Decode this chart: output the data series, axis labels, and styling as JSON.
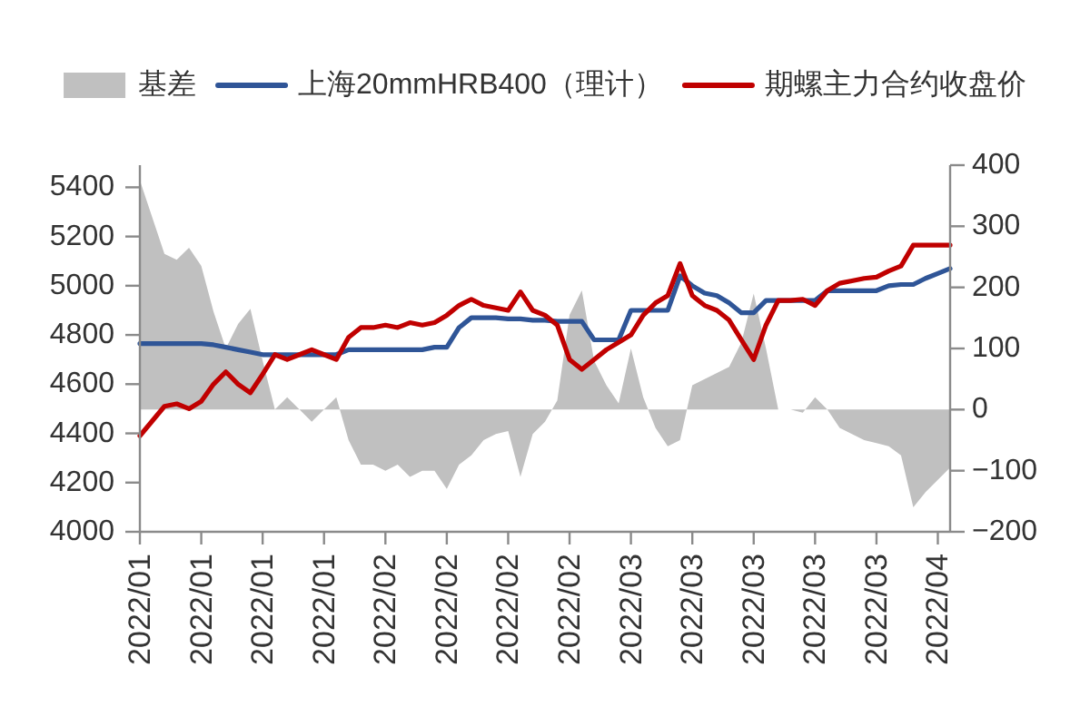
{
  "chart_data": {
    "type": "line",
    "categories": [
      "2022/01",
      null,
      null,
      null,
      null,
      "2022/01",
      null,
      null,
      null,
      null,
      "2022/01",
      null,
      null,
      null,
      null,
      "2022/01",
      null,
      null,
      null,
      null,
      "2022/02",
      null,
      null,
      null,
      null,
      "2022/02",
      null,
      null,
      null,
      null,
      "2022/02",
      null,
      null,
      null,
      null,
      "2022/02",
      null,
      null,
      null,
      null,
      "2022/03",
      null,
      null,
      null,
      null,
      "2022/03",
      null,
      null,
      null,
      null,
      "2022/03",
      null,
      null,
      null,
      null,
      "2022/03",
      null,
      null,
      null,
      null,
      "2022/03",
      null,
      null,
      null,
      null,
      "2022/04",
      null
    ],
    "series": [
      {
        "name": "基差",
        "type": "area",
        "axis": "y2",
        "color": "#c0c0c0",
        "values": [
          375,
          315,
          255,
          245,
          265,
          235,
          160,
          100,
          140,
          165,
          80,
          0,
          20,
          0,
          -20,
          0,
          20,
          -50,
          -90,
          -90,
          -100,
          -90,
          -110,
          -100,
          -100,
          -130,
          -90,
          -75,
          -50,
          -40,
          -35,
          -110,
          -40,
          -20,
          15,
          155,
          195,
          80,
          40,
          10,
          100,
          20,
          -30,
          -60,
          -50,
          40,
          50,
          60,
          70,
          110,
          190,
          100,
          0,
          0,
          -5,
          20,
          0,
          -30,
          -40,
          -50,
          -55,
          -60,
          -75,
          -160,
          -135,
          -115,
          -95
        ]
      },
      {
        "name": "上海20mmHRB400（理计）",
        "color": "#2f5597",
        "values": [
          4765,
          4765,
          4765,
          4765,
          4765,
          4765,
          4760,
          4750,
          4740,
          4730,
          4720,
          4720,
          4720,
          4720,
          4720,
          4720,
          4720,
          4740,
          4740,
          4740,
          4740,
          4740,
          4740,
          4740,
          4750,
          4750,
          4830,
          4870,
          4870,
          4870,
          4865,
          4865,
          4860,
          4860,
          4855,
          4855,
          4855,
          4780,
          4780,
          4780,
          4900,
          4900,
          4900,
          4900,
          5040,
          5000,
          4970,
          4960,
          4930,
          4890,
          4890,
          4940,
          4940,
          4940,
          4940,
          4940,
          4980,
          4980,
          4980,
          4980,
          4980,
          5000,
          5005,
          5005,
          5030,
          5050,
          5070
        ]
      },
      {
        "name": "期螺主力合约收盘价",
        "color": "#c00000",
        "values": [
          4390,
          4450,
          4510,
          4520,
          4500,
          4530,
          4600,
          4650,
          4600,
          4565,
          4640,
          4720,
          4700,
          4720,
          4740,
          4720,
          4700,
          4790,
          4830,
          4830,
          4840,
          4830,
          4850,
          4840,
          4850,
          4880,
          4920,
          4945,
          4920,
          4910,
          4900,
          4975,
          4900,
          4880,
          4840,
          4700,
          4660,
          4700,
          4740,
          4770,
          4800,
          4880,
          4930,
          4960,
          5090,
          4960,
          4920,
          4900,
          4860,
          4780,
          4700,
          4840,
          4940,
          4940,
          4945,
          4920,
          4980,
          5010,
          5020,
          5030,
          5035,
          5060,
          5080,
          5165,
          5165,
          5165,
          5165
        ]
      }
    ],
    "ylim": [
      4000,
      5490
    ],
    "yticks": [
      4000,
      4200,
      4400,
      4600,
      4800,
      5000,
      5200,
      5400
    ],
    "y2lim": [
      -200,
      400
    ],
    "y2ticks": [
      {
        "value": -200,
        "label": "−200"
      },
      {
        "value": -100,
        "label": "−100"
      },
      0,
      100,
      200,
      300,
      400
    ],
    "legend": "top"
  }
}
